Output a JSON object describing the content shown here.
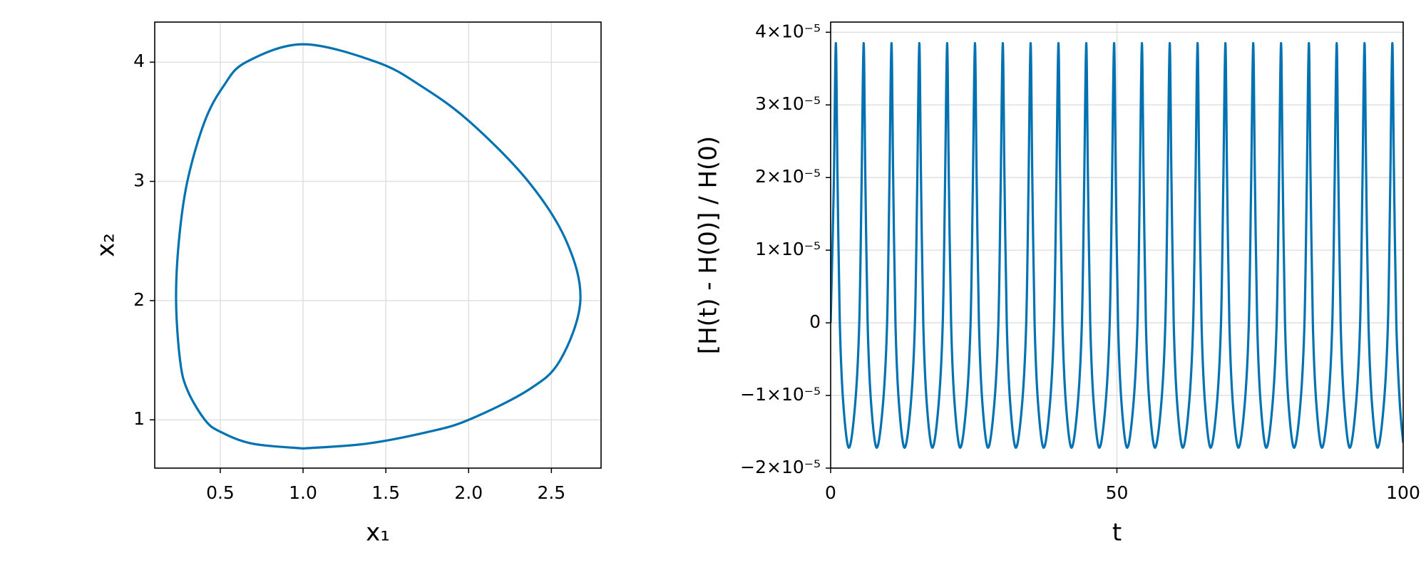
{
  "chart_data": [
    {
      "type": "line",
      "xlabel": "x₁",
      "ylabel": "x₂",
      "x": [
        1,
        1.385,
        1.76,
        2.0,
        2.36,
        2.553,
        2.675,
        2.59,
        2.36,
        2.007,
        1.713,
        1.446,
        1,
        0.656,
        0.52,
        0.405,
        0.301,
        0.25,
        0.233,
        0.257,
        0.301,
        0.407,
        0.5,
        0.695,
        1
      ],
      "series": [
        {
          "color": "#0072b2",
          "values": [
            0.76,
            0.8,
            0.9,
            1.0,
            1.25,
            1.5,
            2.0,
            2.5,
            3.0,
            3.5,
            3.8,
            4.0,
            4.15,
            4.0,
            3.8,
            3.5,
            3.0,
            2.5,
            2.0,
            1.5,
            1.25,
            1.0,
            0.9,
            0.8,
            0.76
          ]
        }
      ],
      "xlim": [
        0.104,
        2.8
      ],
      "ylim": [
        0.595,
        4.336
      ],
      "xticks": [
        0.5,
        {
          "value": 1,
          "label": "1.0"
        },
        1.5,
        {
          "value": 2,
          "label": "2.0"
        },
        2.5
      ],
      "yticks": [
        1,
        2,
        3,
        4
      ],
      "grid": true
    },
    {
      "type": "line",
      "xlabel": "t",
      "ylabel": "[H(t) - H(0)] / H(0)",
      "x": [
        0,
        0.55,
        0.9,
        1.2,
        1.6,
        2.2,
        3.2,
        4.3,
        5.0,
        5.4,
        5.76,
        6.06,
        6.46,
        7.06,
        8.06,
        9.16,
        9.86,
        10.26,
        10.62,
        10.92,
        11.32,
        11.92,
        12.92,
        14.02,
        14.72,
        15.12,
        15.48,
        15.78,
        16.18,
        16.78,
        17.78,
        18.88,
        19.58,
        19.98,
        20.34,
        20.64,
        21.04,
        21.64,
        22.64,
        23.74,
        24.44,
        24.84,
        25.2,
        25.5,
        25.9,
        26.5,
        27.5,
        28.6,
        29.3,
        29.7,
        30.06,
        30.36,
        30.76,
        31.36,
        32.36,
        33.46,
        34.16,
        34.56,
        34.92,
        35.22,
        35.62,
        36.22,
        37.22,
        38.32,
        39.02,
        39.42,
        39.78,
        40.08,
        40.48,
        41.08,
        42.08,
        43.18,
        43.88,
        44.28,
        44.64,
        44.94,
        45.34,
        45.94,
        46.94,
        48.04,
        48.74,
        49.14,
        49.5,
        49.8,
        50.2,
        50.8,
        51.8,
        52.9,
        53.6,
        54.0,
        54.36,
        54.66,
        55.06,
        55.66,
        56.66,
        57.76,
        58.46,
        58.86,
        59.22,
        59.52,
        59.92,
        60.52,
        61.52,
        62.62,
        63.32,
        63.72,
        64.08,
        64.38,
        64.78,
        65.38,
        66.38,
        67.48,
        68.18,
        68.58,
        68.94,
        69.24,
        69.64,
        70.24,
        71.24,
        72.34,
        73.04,
        73.44,
        73.8,
        74.1,
        74.5,
        75.1,
        76.1,
        77.2,
        77.9,
        78.3,
        78.66,
        78.96,
        79.36,
        79.96,
        80.96,
        82.06,
        82.76,
        83.16,
        83.52,
        83.82,
        84.22,
        84.82,
        85.82,
        86.92,
        87.62,
        88.02,
        88.38,
        88.68,
        89.08,
        89.68,
        90.68,
        91.78,
        92.48,
        92.88,
        93.24,
        93.54,
        93.94,
        94.54,
        95.54,
        96.64,
        97.34,
        97.74,
        98.1,
        98.4,
        98.8,
        99.4,
        100
      ],
      "series": [
        {
          "color": "#0072b2",
          "values": [
            0,
            1.9e-05,
            3.85e-05,
            2e-05,
            0,
            -1.1e-05,
            -1.72e-05,
            -1.1e-05,
            0,
            1.9e-05,
            3.85e-05,
            2e-05,
            0,
            -1.1e-05,
            -1.72e-05,
            -1.1e-05,
            0,
            1.9e-05,
            3.85e-05,
            2e-05,
            0,
            -1.1e-05,
            -1.72e-05,
            -1.1e-05,
            0,
            1.9e-05,
            3.85e-05,
            2e-05,
            0,
            -1.1e-05,
            -1.72e-05,
            -1.1e-05,
            0,
            1.9e-05,
            3.85e-05,
            2e-05,
            0,
            -1.1e-05,
            -1.72e-05,
            -1.1e-05,
            0,
            1.9e-05,
            3.85e-05,
            2e-05,
            0,
            -1.1e-05,
            -1.72e-05,
            -1.1e-05,
            0,
            1.9e-05,
            3.85e-05,
            2e-05,
            0,
            -1.1e-05,
            -1.72e-05,
            -1.1e-05,
            0,
            1.9e-05,
            3.85e-05,
            2e-05,
            0,
            -1.1e-05,
            -1.72e-05,
            -1.1e-05,
            0,
            1.9e-05,
            3.85e-05,
            2e-05,
            0,
            -1.1e-05,
            -1.72e-05,
            -1.1e-05,
            0,
            1.9e-05,
            3.85e-05,
            2e-05,
            0,
            -1.1e-05,
            -1.72e-05,
            -1.1e-05,
            0,
            1.9e-05,
            3.85e-05,
            2e-05,
            0,
            -1.1e-05,
            -1.72e-05,
            -1.1e-05,
            0,
            1.9e-05,
            3.85e-05,
            2e-05,
            0,
            -1.1e-05,
            -1.72e-05,
            -1.1e-05,
            0,
            1.9e-05,
            3.85e-05,
            2e-05,
            0,
            -1.1e-05,
            -1.72e-05,
            -1.1e-05,
            0,
            1.9e-05,
            3.85e-05,
            2e-05,
            0,
            -1.1e-05,
            -1.72e-05,
            -1.1e-05,
            0,
            1.9e-05,
            3.85e-05,
            2e-05,
            0,
            -1.1e-05,
            -1.72e-05,
            -1.1e-05,
            0,
            1.9e-05,
            3.85e-05,
            2e-05,
            0,
            -1.1e-05,
            -1.72e-05,
            -1.1e-05,
            0,
            1.9e-05,
            3.85e-05,
            2e-05,
            0,
            -1.1e-05,
            -1.72e-05,
            -1.1e-05,
            0,
            1.9e-05,
            3.85e-05,
            2e-05,
            0,
            -1.1e-05,
            -1.72e-05,
            -1.1e-05,
            0,
            1.9e-05,
            3.85e-05,
            2e-05,
            0,
            -1.1e-05,
            -1.72e-05,
            -1.1e-05,
            0,
            1.9e-05,
            3.85e-05,
            2e-05,
            0,
            -1.1e-05,
            -1.72e-05,
            -1.1e-05,
            0,
            1.9e-05,
            3.85e-05,
            2e-05,
            0,
            -1.1e-05,
            -1.65e-05
          ]
        }
      ],
      "xlim": [
        0,
        100
      ],
      "ylim": [
        -2e-05,
        4.14e-05
      ],
      "xticks": [
        0,
        50,
        100
      ],
      "yticks": [
        {
          "value": -2e-05,
          "label": "−2×10⁻⁵"
        },
        {
          "value": -1e-05,
          "label": "−1×10⁻⁵"
        },
        0,
        {
          "value": 1e-05,
          "label": "1×10⁻⁵"
        },
        {
          "value": 2e-05,
          "label": "2×10⁻⁵"
        },
        {
          "value": 3e-05,
          "label": "3×10⁻⁵"
        },
        {
          "value": 4e-05,
          "label": "4×10⁻⁵"
        }
      ],
      "grid": true
    }
  ]
}
